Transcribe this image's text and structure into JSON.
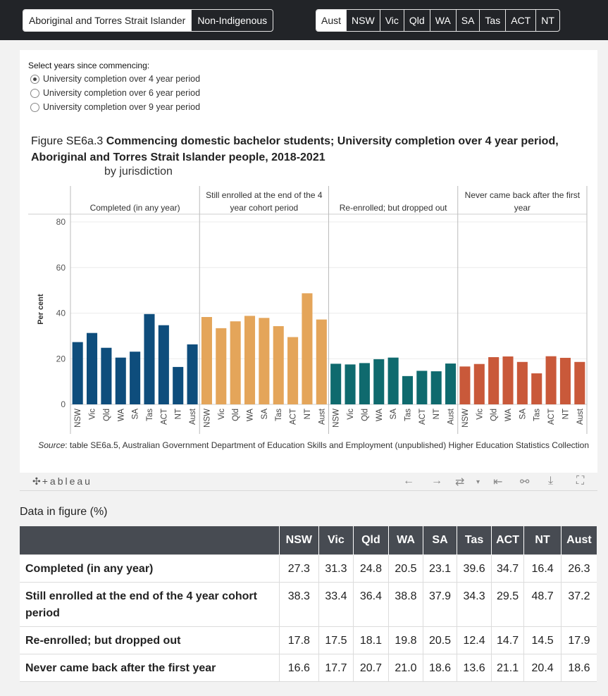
{
  "population_selector": {
    "options": [
      "Aboriginal and Torres Strait Islander",
      "Non-Indigenous"
    ],
    "selected": 0
  },
  "jurisdiction_selector": {
    "options": [
      "Aust",
      "NSW",
      "Vic",
      "Qld",
      "WA",
      "SA",
      "Tas",
      "ACT",
      "NT"
    ],
    "selected": 0
  },
  "years_selector": {
    "title": "Select years since commencing:",
    "options": [
      "University completion over 4 year period",
      "University completion over 6 year period",
      "University completion over 9 year period"
    ],
    "selected": 0
  },
  "figure": {
    "number": "Figure SE6a.3",
    "title": "Commencing domestic bachelor students; University completion over 4 year period, Aboriginal and Torres Strait Islander people, 2018-2021",
    "subtitle": "by jurisdiction",
    "source_label": "Source",
    "source_text": ": table SE6a.5, Australian Government Department of Education Skills and Employment (unpublished) Higher Education Statistics Collection"
  },
  "toolbar": {
    "logo": "+ableau",
    "icons": [
      "undo-icon",
      "redo-icon",
      "revert-icon",
      "pause-icon",
      "share-icon",
      "download-icon",
      "fullscreen-icon"
    ]
  },
  "chart_data": {
    "type": "bar",
    "ylabel": "Per cent",
    "ylim": [
      0,
      80
    ],
    "yticks": [
      0,
      20,
      40,
      60,
      80
    ],
    "grid": true,
    "categories": [
      "NSW",
      "Vic",
      "Qld",
      "WA",
      "SA",
      "Tas",
      "ACT",
      "NT",
      "Aust"
    ],
    "series": [
      {
        "name": "Completed (in any year)",
        "color": "#0e4d7c",
        "values": [
          27.3,
          31.3,
          24.8,
          20.5,
          23.1,
          39.6,
          34.7,
          16.4,
          26.3
        ]
      },
      {
        "name": "Still enrolled at the end of the 4 year cohort period",
        "color": "#e4a55a",
        "values": [
          38.3,
          33.4,
          36.4,
          38.8,
          37.9,
          34.3,
          29.5,
          48.7,
          37.2
        ]
      },
      {
        "name": "Re-enrolled; but dropped out",
        "color": "#0f6a6e",
        "values": [
          17.8,
          17.5,
          18.1,
          19.8,
          20.5,
          12.4,
          14.7,
          14.5,
          17.9
        ]
      },
      {
        "name": "Never came back after the first year",
        "color": "#c9593a",
        "values": [
          16.6,
          17.7,
          20.7,
          21.0,
          18.6,
          13.6,
          21.1,
          20.4,
          18.6
        ]
      }
    ],
    "panel_headers": [
      [
        "Completed (in any year)"
      ],
      [
        "Still enrolled at the end of the 4",
        "year cohort period"
      ],
      [
        "Re-enrolled; but dropped out"
      ],
      [
        "Never came back after the first",
        "year"
      ]
    ]
  },
  "data_table": {
    "heading": "Data in figure (%)",
    "columns": [
      "NSW",
      "Vic",
      "Qld",
      "WA",
      "SA",
      "Tas",
      "ACT",
      "NT",
      "Aust"
    ],
    "rows": [
      {
        "label": "Completed (in any year)",
        "values": [
          "27.3",
          "31.3",
          "24.8",
          "20.5",
          "23.1",
          "39.6",
          "34.7",
          "16.4",
          "26.3"
        ]
      },
      {
        "label": "Still enrolled at the end of the 4 year cohort period",
        "values": [
          "38.3",
          "33.4",
          "36.4",
          "38.8",
          "37.9",
          "34.3",
          "29.5",
          "48.7",
          "37.2"
        ]
      },
      {
        "label": "Re-enrolled; but dropped out",
        "values": [
          "17.8",
          "17.5",
          "18.1",
          "19.8",
          "20.5",
          "12.4",
          "14.7",
          "14.5",
          "17.9"
        ]
      },
      {
        "label": "Never came back after the first year",
        "values": [
          "16.6",
          "17.7",
          "20.7",
          "21.0",
          "18.6",
          "13.6",
          "21.1",
          "20.4",
          "18.6"
        ]
      }
    ]
  }
}
